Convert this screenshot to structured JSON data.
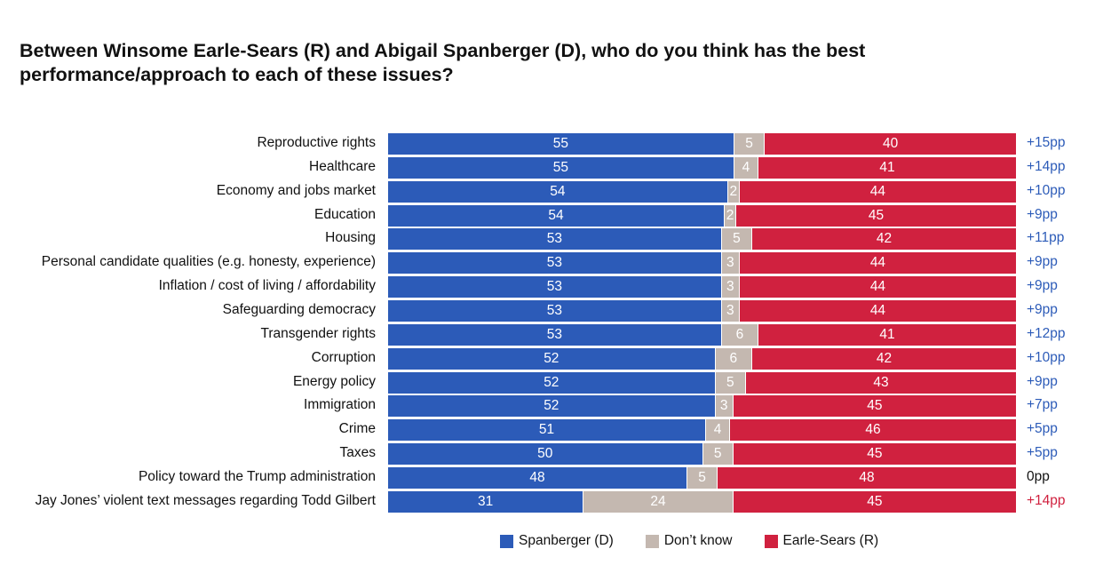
{
  "chart_data": {
    "type": "bar",
    "stacked": true,
    "orientation": "horizontal",
    "title": "Between Winsome Earle-Sears (R) and Abigail Spanberger (D), who do you think has the best performance/approach to each of these issues?",
    "categories": [
      "Reproductive rights",
      "Healthcare",
      "Economy and jobs market",
      "Education",
      "Housing",
      "Personal candidate qualities (e.g. honesty, experience)",
      "Inflation / cost of living / affordability",
      "Safeguarding democracy",
      "Transgender rights",
      "Corruption",
      "Energy policy",
      "Immigration",
      "Crime",
      "Taxes",
      "Policy toward the Trump administration",
      "Jay Jones’ violent text messages regarding Todd Gilbert"
    ],
    "series": [
      {
        "name": "Spanberger (D)",
        "color": "#2c5bb8",
        "values": [
          55,
          55,
          54,
          54,
          53,
          53,
          53,
          53,
          53,
          52,
          52,
          52,
          51,
          50,
          48,
          31
        ]
      },
      {
        "name": "Don’t know",
        "color": "#c4b8b0",
        "values": [
          5,
          4,
          2,
          2,
          5,
          3,
          3,
          3,
          6,
          6,
          5,
          3,
          4,
          5,
          5,
          24
        ]
      },
      {
        "name": "Earle-Sears (R)",
        "color": "#d0213f",
        "values": [
          40,
          41,
          44,
          45,
          42,
          44,
          44,
          44,
          41,
          42,
          43,
          45,
          46,
          45,
          48,
          45
        ]
      }
    ],
    "differences": [
      "+15pp",
      "+14pp",
      "+10pp",
      "+9pp",
      "+11pp",
      "+9pp",
      "+9pp",
      "+9pp",
      "+12pp",
      "+10pp",
      "+9pp",
      "+7pp",
      "+5pp",
      "+5pp",
      "0pp",
      "+14pp"
    ],
    "difference_colors": [
      "#2c5bb8",
      "#2c5bb8",
      "#2c5bb8",
      "#2c5bb8",
      "#2c5bb8",
      "#2c5bb8",
      "#2c5bb8",
      "#2c5bb8",
      "#2c5bb8",
      "#2c5bb8",
      "#2c5bb8",
      "#2c5bb8",
      "#2c5bb8",
      "#2c5bb8",
      "#111111",
      "#d0213f"
    ],
    "xlim": [
      0,
      100
    ],
    "legend_position": "bottom"
  }
}
